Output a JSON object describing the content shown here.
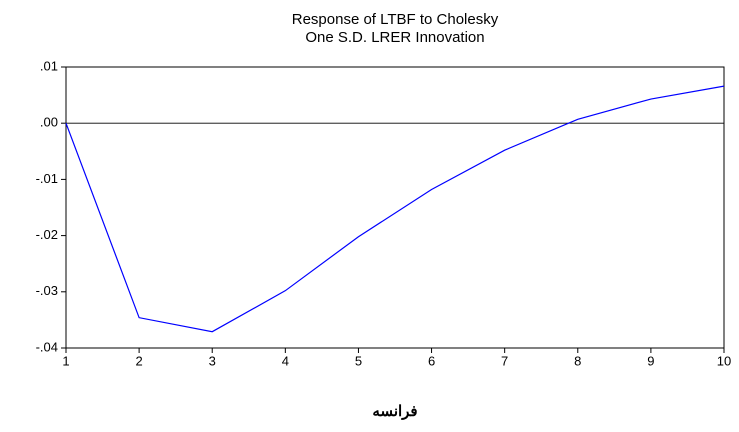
{
  "chart_data": {
    "type": "line",
    "title": "Response of LTBF to Cholesky",
    "subtitle": "One S.D. LRER Innovation",
    "x_label": "فرانسه",
    "x": [
      1,
      2,
      3,
      4,
      5,
      6,
      7,
      8,
      9,
      10
    ],
    "series": [
      {
        "color": "#0000ff",
        "values": [
          0.0,
          -0.0346,
          -0.0371,
          -0.0298,
          -0.0202,
          -0.0118,
          -0.0048,
          0.0007,
          0.0043,
          0.0066
        ]
      }
    ],
    "xlim": [
      1,
      10
    ],
    "xticks": [
      1,
      2,
      3,
      4,
      5,
      6,
      7,
      8,
      9,
      10
    ],
    "ylim": [
      -0.04,
      0.01
    ],
    "yticks": [
      {
        "value": 0.01,
        "label": ".01"
      },
      {
        "value": 0.0,
        "label": ".00"
      },
      {
        "value": -0.01,
        "label": "-.01"
      },
      {
        "value": -0.02,
        "label": "-.02"
      },
      {
        "value": -0.03,
        "label": "-.03"
      },
      {
        "value": -0.04,
        "label": "-.04"
      }
    ],
    "zero_line": true
  }
}
